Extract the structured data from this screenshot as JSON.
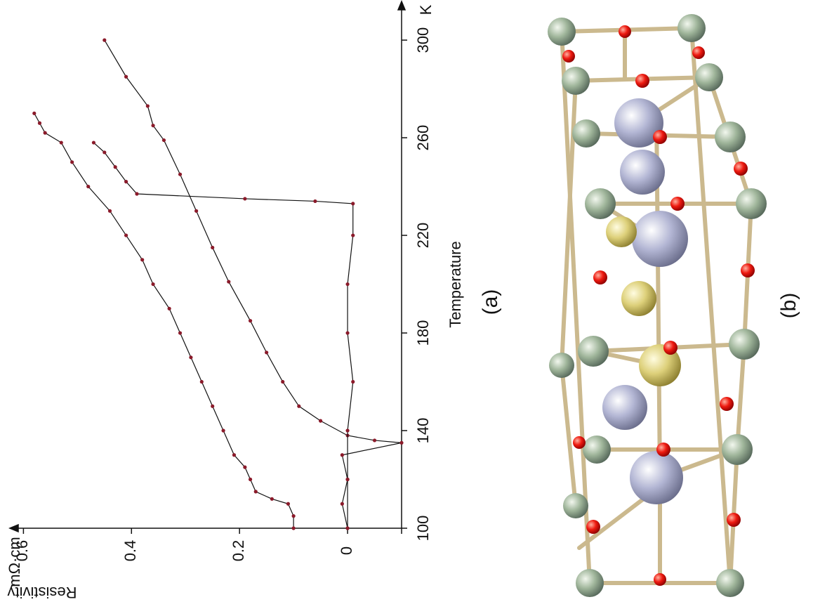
{
  "chart_data": {
    "type": "line",
    "label": "(a)",
    "x_label": "Temperature",
    "x_unit": "K",
    "y_label": "Resistivity",
    "y_unit": "mΩ·cm",
    "xlim": [
      100,
      315
    ],
    "ylim": [
      -0.1,
      0.62
    ],
    "xticks": [
      100,
      140,
      180,
      220,
      260,
      300
    ],
    "yticks": [
      0,
      0.2,
      0.4,
      0.6
    ],
    "series": [
      {
        "color": "#8b1a2a",
        "x": [
          100,
          105,
          110,
          112,
          115,
          120,
          125,
          130,
          140,
          150,
          160,
          170,
          180,
          190,
          200,
          210,
          220,
          230,
          240,
          250,
          258,
          262,
          266,
          270
        ],
        "values": [
          0.1,
          0.1,
          0.11,
          0.14,
          0.17,
          0.18,
          0.19,
          0.21,
          0.23,
          0.25,
          0.27,
          0.29,
          0.31,
          0.33,
          0.36,
          0.38,
          0.41,
          0.44,
          0.48,
          0.51,
          0.53,
          0.56,
          0.57,
          0.58
        ]
      },
      {
        "color": "#8b1a2a",
        "x": [
          100,
          110,
          120,
          130,
          135,
          136,
          138,
          144,
          150,
          160,
          172,
          185,
          201,
          215,
          230,
          245,
          259,
          265,
          273,
          285,
          300
        ],
        "values": [
          0,
          0.01,
          0,
          0.01,
          -0.1,
          -0.05,
          0,
          0.05,
          0.09,
          0.12,
          0.15,
          0.18,
          0.22,
          0.25,
          0.28,
          0.31,
          0.34,
          0.36,
          0.37,
          0.41,
          0.45
        ]
      },
      {
        "color": "#8b1a2a",
        "x": [
          100,
          120,
          140,
          160,
          180,
          200,
          220,
          233,
          234,
          235,
          237,
          242,
          248,
          254,
          258
        ],
        "values": [
          0,
          0,
          0,
          -0.01,
          0,
          0,
          -0.01,
          -0.01,
          0.06,
          0.19,
          0.39,
          0.41,
          0.43,
          0.45,
          0.47
        ]
      }
    ]
  },
  "structure_label": "(b)"
}
